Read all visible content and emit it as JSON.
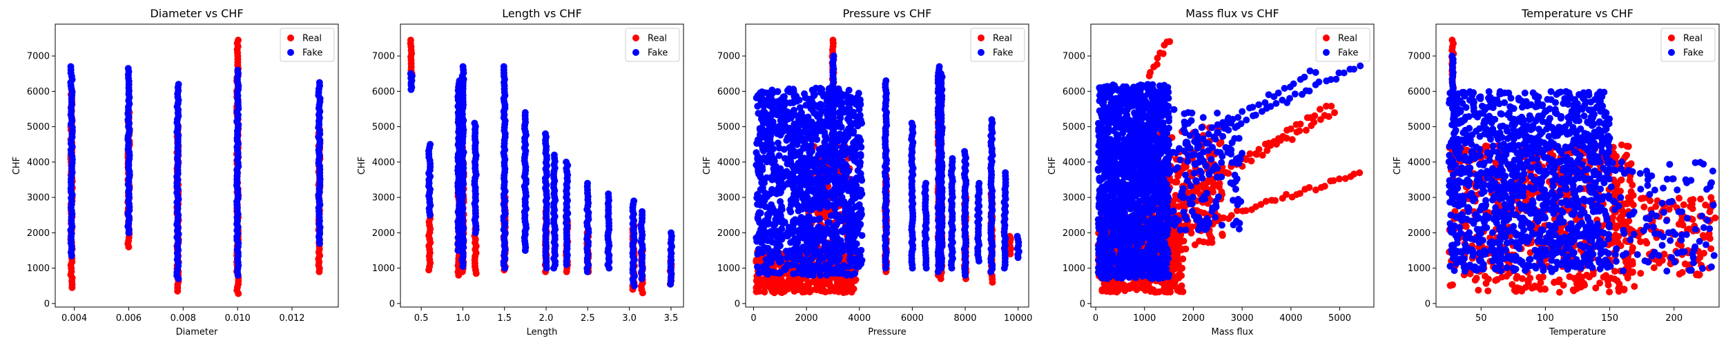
{
  "colors": {
    "real": "#ff0000",
    "fake": "#0000ff",
    "axis": "#000000",
    "background": "#ffffff"
  },
  "chart_data": [
    {
      "type": "scatter",
      "title": "Diameter vs CHF",
      "xlabel": "Diameter",
      "ylabel": "CHF",
      "xlim": [
        0.0033,
        0.0137
      ],
      "ylim": [
        -100,
        7900
      ],
      "xticks": [
        0.004,
        0.006,
        0.008,
        0.01,
        0.012
      ],
      "xtick_labels": [
        "0.004",
        "0.006",
        "0.008",
        "0.010",
        "0.012"
      ],
      "yticks": [
        0,
        1000,
        2000,
        3000,
        4000,
        5000,
        6000,
        7000
      ],
      "ytick_labels": [
        "0",
        "1000",
        "2000",
        "3000",
        "4000",
        "5000",
        "6000",
        "7000"
      ],
      "legend": {
        "position": "top-right",
        "entries": [
          "Real",
          "Fake"
        ]
      },
      "series": [
        {
          "name": "Real",
          "color": "#ff0000",
          "bands": [
            {
              "x": 0.0039,
              "ymin": 450,
              "ymax": 6000
            },
            {
              "x": 0.006,
              "ymin": 1600,
              "ymax": 5400
            },
            {
              "x": 0.0078,
              "ymin": 350,
              "ymax": 5000
            },
            {
              "x": 0.01,
              "ymin": 280,
              "ymax": 7450
            },
            {
              "x": 0.013,
              "ymin": 900,
              "ymax": 5000
            }
          ]
        },
        {
          "name": "Fake",
          "color": "#0000ff",
          "bands": [
            {
              "x": 0.0039,
              "ymin": 1350,
              "ymax": 6700
            },
            {
              "x": 0.006,
              "ymin": 2000,
              "ymax": 6650
            },
            {
              "x": 0.0078,
              "ymin": 700,
              "ymax": 6200
            },
            {
              "x": 0.01,
              "ymin": 800,
              "ymax": 6600
            },
            {
              "x": 0.013,
              "ymin": 1700,
              "ymax": 6250
            }
          ]
        }
      ]
    },
    {
      "type": "scatter",
      "title": "Length vs CHF",
      "xlabel": "Length",
      "ylabel": "CHF",
      "xlim": [
        0.25,
        3.65
      ],
      "ylim": [
        -100,
        7900
      ],
      "xticks": [
        0.5,
        1.0,
        1.5,
        2.0,
        2.5,
        3.0,
        3.5
      ],
      "xtick_labels": [
        "0.5",
        "1.0",
        "1.5",
        "2.0",
        "2.5",
        "3.0",
        "3.5"
      ],
      "yticks": [
        0,
        1000,
        2000,
        3000,
        4000,
        5000,
        6000,
        7000
      ],
      "ytick_labels": [
        "0",
        "1000",
        "2000",
        "3000",
        "4000",
        "5000",
        "6000",
        "7000"
      ],
      "legend": {
        "position": "top-right",
        "entries": [
          "Real",
          "Fake"
        ]
      },
      "series": [
        {
          "name": "Real",
          "color": "#ff0000",
          "bands": [
            {
              "x": 0.38,
              "ymin": 6500,
              "ymax": 7450
            },
            {
              "x": 0.6,
              "ymin": 950,
              "ymax": 2500
            },
            {
              "x": 0.95,
              "ymin": 800,
              "ymax": 3500
            },
            {
              "x": 1.0,
              "ymin": 900,
              "ymax": 4500
            },
            {
              "x": 1.15,
              "ymin": 850,
              "ymax": 2200
            },
            {
              "x": 1.5,
              "ymin": 950,
              "ymax": 3000
            },
            {
              "x": 2.0,
              "ymin": 900,
              "ymax": 2700
            },
            {
              "x": 2.25,
              "ymin": 900,
              "ymax": 2500
            },
            {
              "x": 2.5,
              "ymin": 900,
              "ymax": 2000
            },
            {
              "x": 3.05,
              "ymin": 400,
              "ymax": 2200
            },
            {
              "x": 3.15,
              "ymin": 300,
              "ymax": 1500
            },
            {
              "x": 3.5,
              "ymin": 550,
              "ymax": 1200
            }
          ]
        },
        {
          "name": "Fake",
          "color": "#0000ff",
          "bands": [
            {
              "x": 0.38,
              "ymin": 6050,
              "ymax": 6500
            },
            {
              "x": 0.6,
              "ymin": 2500,
              "ymax": 4500
            },
            {
              "x": 0.95,
              "ymin": 1500,
              "ymax": 6300
            },
            {
              "x": 1.0,
              "ymin": 1050,
              "ymax": 6700
            },
            {
              "x": 1.15,
              "ymin": 2000,
              "ymax": 5100
            },
            {
              "x": 1.5,
              "ymin": 1000,
              "ymax": 6700
            },
            {
              "x": 1.75,
              "ymin": 1500,
              "ymax": 5400
            },
            {
              "x": 2.0,
              "ymin": 1000,
              "ymax": 4800
            },
            {
              "x": 2.1,
              "ymin": 1000,
              "ymax": 4200
            },
            {
              "x": 2.25,
              "ymin": 1100,
              "ymax": 4000
            },
            {
              "x": 2.5,
              "ymin": 900,
              "ymax": 3400
            },
            {
              "x": 2.75,
              "ymin": 1000,
              "ymax": 3100
            },
            {
              "x": 3.05,
              "ymin": 500,
              "ymax": 2900
            },
            {
              "x": 3.15,
              "ymin": 700,
              "ymax": 2600
            },
            {
              "x": 3.5,
              "ymin": 550,
              "ymax": 2000
            }
          ]
        }
      ]
    },
    {
      "type": "scatter",
      "title": "Pressure vs CHF",
      "xlabel": "Pressure",
      "ylabel": "CHF",
      "xlim": [
        -300,
        10400
      ],
      "ylim": [
        -100,
        7900
      ],
      "xticks": [
        0,
        2000,
        4000,
        6000,
        8000,
        10000
      ],
      "xtick_labels": [
        "0",
        "2000",
        "4000",
        "6000",
        "8000",
        "10000"
      ],
      "yticks": [
        0,
        1000,
        2000,
        3000,
        4000,
        5000,
        6000,
        7000
      ],
      "ytick_labels": [
        "0",
        "1000",
        "2000",
        "3000",
        "4000",
        "5000",
        "6000",
        "7000"
      ],
      "legend": {
        "position": "top-right",
        "entries": [
          "Real",
          "Fake"
        ]
      },
      "series": [
        {
          "name": "Real",
          "color": "#ff0000",
          "clouds": [
            {
              "xmin": 100,
              "xmax": 3900,
              "ymin": 300,
              "ymax": 1500,
              "n": 420
            },
            {
              "xmin": 2000,
              "xmax": 3800,
              "ymin": 1000,
              "ymax": 4500,
              "n": 160
            }
          ],
          "bands": [
            {
              "x": 3000,
              "ymin": 4500,
              "ymax": 7450
            },
            {
              "x": 5000,
              "ymin": 900,
              "ymax": 3800
            },
            {
              "x": 7000,
              "ymin": 800,
              "ymax": 5400
            },
            {
              "x": 7100,
              "ymin": 700,
              "ymax": 4000
            },
            {
              "x": 8000,
              "ymin": 700,
              "ymax": 3000
            },
            {
              "x": 9000,
              "ymin": 600,
              "ymax": 3100
            },
            {
              "x": 9700,
              "ymin": 1400,
              "ymax": 1900
            }
          ]
        },
        {
          "name": "Fake",
          "color": "#0000ff",
          "clouds": [
            {
              "xmin": 100,
              "xmax": 4100,
              "ymin": 800,
              "ymax": 6100,
              "n": 1300
            }
          ],
          "bands": [
            {
              "x": 3000,
              "ymin": 3500,
              "ymax": 7000
            },
            {
              "x": 5000,
              "ymin": 1000,
              "ymax": 6300
            },
            {
              "x": 6000,
              "ymin": 1000,
              "ymax": 5100
            },
            {
              "x": 6500,
              "ymin": 1000,
              "ymax": 3400
            },
            {
              "x": 7000,
              "ymin": 900,
              "ymax": 6700
            },
            {
              "x": 7100,
              "ymin": 1000,
              "ymax": 6500
            },
            {
              "x": 7500,
              "ymin": 1000,
              "ymax": 4100
            },
            {
              "x": 8000,
              "ymin": 800,
              "ymax": 4300
            },
            {
              "x": 8500,
              "ymin": 1200,
              "ymax": 3400
            },
            {
              "x": 9000,
              "ymin": 900,
              "ymax": 5200
            },
            {
              "x": 9500,
              "ymin": 1000,
              "ymax": 3700
            },
            {
              "x": 10000,
              "ymin": 1300,
              "ymax": 1900
            }
          ]
        }
      ]
    },
    {
      "type": "scatter",
      "title": "Mass flux vs CHF",
      "xlabel": "Mass flux",
      "ylabel": "CHF",
      "xlim": [
        -100,
        5700
      ],
      "ylim": [
        -100,
        7900
      ],
      "xticks": [
        0,
        1000,
        2000,
        3000,
        4000,
        5000
      ],
      "xtick_labels": [
        "0",
        "1000",
        "2000",
        "3000",
        "4000",
        "5000"
      ],
      "yticks": [
        0,
        1000,
        2000,
        3000,
        4000,
        5000,
        6000,
        7000
      ],
      "ytick_labels": [
        "0",
        "1000",
        "2000",
        "3000",
        "4000",
        "5000",
        "6000",
        "7000"
      ],
      "legend": {
        "position": "top-right",
        "entries": [
          "Real",
          "Fake"
        ]
      },
      "series": [
        {
          "name": "Real",
          "color": "#ff0000",
          "clouds": [
            {
              "xmin": 50,
              "xmax": 1800,
              "ymin": 300,
              "ymax": 2500,
              "n": 600
            },
            {
              "xmin": 800,
              "xmax": 2600,
              "ymin": 1500,
              "ymax": 5000,
              "n": 250
            }
          ],
          "lines": [
            {
              "x0": 1000,
              "y0": 1700,
              "x1": 5400,
              "y1": 3700,
              "n": 45
            },
            {
              "x0": 1500,
              "y0": 2800,
              "x1": 4900,
              "y1": 5400,
              "n": 35
            },
            {
              "x0": 2000,
              "y0": 3200,
              "x1": 4800,
              "y1": 5600,
              "n": 30
            },
            {
              "x0": 1100,
              "y0": 6500,
              "x1": 1500,
              "y1": 7450,
              "n": 10
            }
          ]
        },
        {
          "name": "Fake",
          "color": "#0000ff",
          "clouds": [
            {
              "xmin": 50,
              "xmax": 1500,
              "ymin": 700,
              "ymax": 6200,
              "n": 1500
            },
            {
              "xmin": 1000,
              "xmax": 3000,
              "ymin": 2000,
              "ymax": 5500,
              "n": 200
            }
          ],
          "lines": [
            {
              "x0": 1500,
              "y0": 4200,
              "x1": 5400,
              "y1": 6700,
              "n": 40
            },
            {
              "x0": 2500,
              "y0": 5000,
              "x1": 4500,
              "y1": 6600,
              "n": 20
            }
          ]
        }
      ]
    },
    {
      "type": "scatter",
      "title": "Temperature vs CHF",
      "xlabel": "Temperature",
      "ylabel": "CHF",
      "xlim": [
        15,
        235
      ],
      "ylim": [
        -100,
        7900
      ],
      "xticks": [
        50,
        100,
        150,
        200
      ],
      "xtick_labels": [
        "50",
        "100",
        "150",
        "200"
      ],
      "yticks": [
        0,
        1000,
        2000,
        3000,
        4000,
        5000,
        6000,
        7000
      ],
      "ytick_labels": [
        "0",
        "1000",
        "2000",
        "3000",
        "4000",
        "5000",
        "6000",
        "7000"
      ],
      "legend": {
        "position": "top-right",
        "entries": [
          "Real",
          "Fake"
        ]
      },
      "series": [
        {
          "name": "Real",
          "color": "#ff0000",
          "clouds": [
            {
              "xmin": 25,
              "xmax": 170,
              "ymin": 300,
              "ymax": 4500,
              "n": 600
            },
            {
              "xmin": 150,
              "xmax": 232,
              "ymin": 800,
              "ymax": 3000,
              "n": 150
            }
          ],
          "bands": [
            {
              "x": 28,
              "ymin": 6000,
              "ymax": 7450
            }
          ]
        },
        {
          "name": "Fake",
          "color": "#0000ff",
          "clouds": [
            {
              "xmin": 25,
              "xmax": 150,
              "ymin": 900,
              "ymax": 6000,
              "n": 1300
            },
            {
              "xmin": 150,
              "xmax": 232,
              "ymin": 900,
              "ymax": 4000,
              "n": 110
            }
          ],
          "bands": [
            {
              "x": 28,
              "ymin": 5500,
              "ymax": 7000
            }
          ]
        }
      ]
    }
  ]
}
